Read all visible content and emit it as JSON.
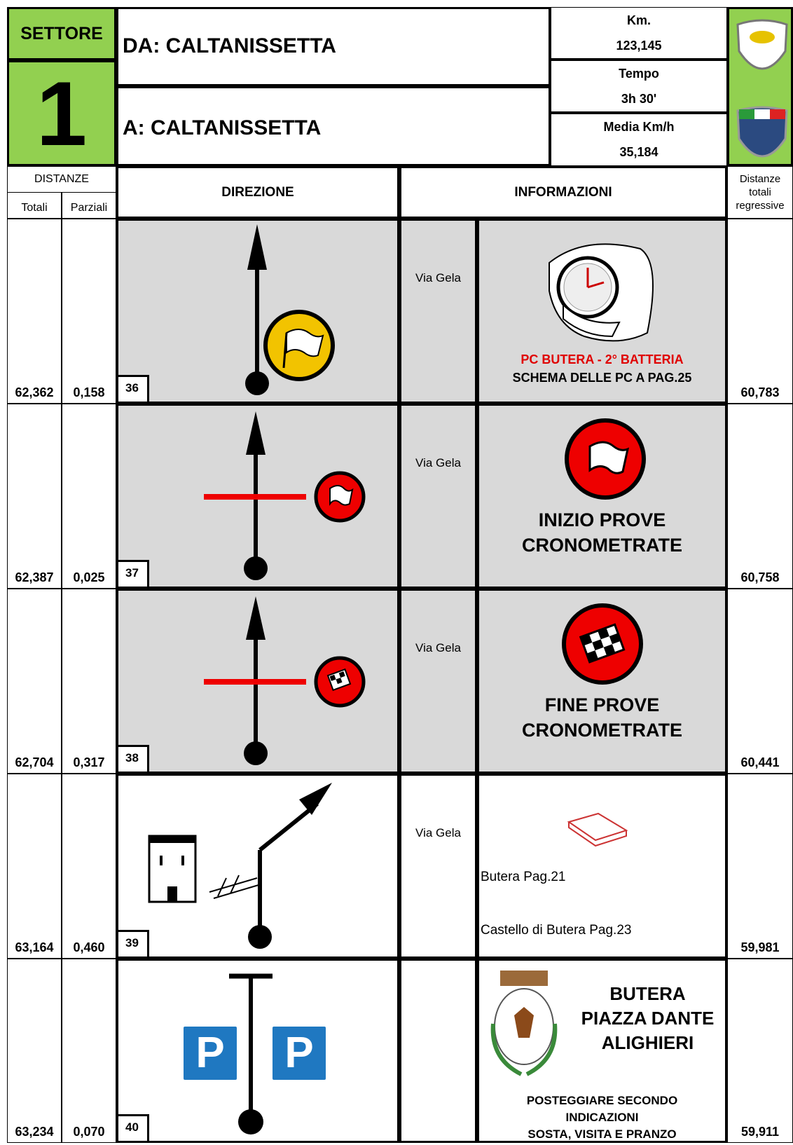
{
  "header": {
    "sector_label": "SETTORE",
    "sector_number": "1",
    "from": "DA: CALTANISSETTA",
    "to": "A: CALTANISSETTA",
    "km_label": "Km.",
    "km": "123,145",
    "time_label": "Tempo",
    "time": "3h 30'",
    "avg_label": "Media Km/h",
    "avg": "35,184"
  },
  "columns": {
    "distances": "DISTANZE",
    "totals": "Totali",
    "partials": "Parziali",
    "direction": "DIREZIONE",
    "information": "INFORMAZIONI",
    "regressive": "Distanze totali regressive"
  },
  "rows": [
    {
      "total": "62,362",
      "partial": "0,158",
      "number": "36",
      "street": "Via Gela",
      "info": [
        "PC BUTERA - 2° BATTERIA",
        "SCHEMA DELLE PC A PAG.25"
      ],
      "regressive": "60,783"
    },
    {
      "total": "62,387",
      "partial": "0,025",
      "number": "37",
      "street": "Via Gela",
      "info": [
        "INIZIO PROVE",
        "CRONOMETRATE"
      ],
      "regressive": "60,758"
    },
    {
      "total": "62,704",
      "partial": "0,317",
      "number": "38",
      "street": "Via Gela",
      "info": [
        "FINE PROVE",
        "CRONOMETRATE"
      ],
      "regressive": "60,441"
    },
    {
      "total": "63,164",
      "partial": "0,460",
      "number": "39",
      "street": "Via Gela",
      "info": [
        "Butera Pag.21",
        "Castello di Butera Pag.23"
      ],
      "regressive": "59,981"
    },
    {
      "total": "63,234",
      "partial": "0,070",
      "number": "40",
      "street": "",
      "info": [
        "BUTERA",
        "PIAZZA DANTE",
        "ALIGHIERI",
        "POSTEGGIARE SECONDO",
        "INDICAZIONI",
        "SOSTA, VISITA E PRANZO"
      ],
      "regressive": "59,911"
    }
  ]
}
